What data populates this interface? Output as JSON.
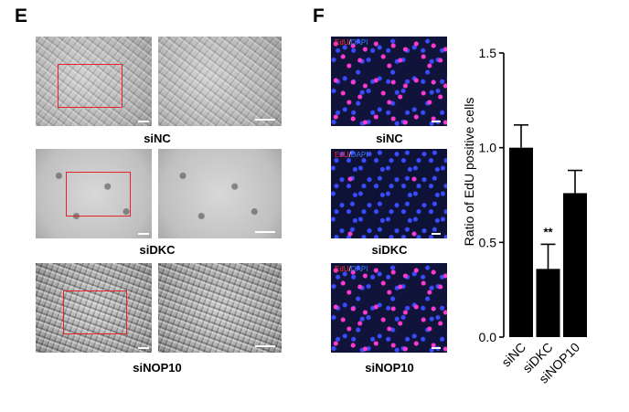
{
  "panel_e": {
    "letter": "E",
    "captions": [
      "siNC",
      "siDKC",
      "siNOP10"
    ]
  },
  "panel_f": {
    "letter": "F",
    "captions": [
      "siNC",
      "siDKC",
      "siNOP10"
    ],
    "stain_label": {
      "edu": "EdU",
      "separator": "/",
      "dapi": "DAPI"
    }
  },
  "chart_data": {
    "type": "bar",
    "categories": [
      "siNC",
      "siDKC",
      "siNOP10"
    ],
    "values": [
      1.0,
      0.36,
      0.76
    ],
    "errors": [
      0.12,
      0.13,
      0.12
    ],
    "significance": [
      "",
      "**",
      ""
    ],
    "ylabel": "Ratio of EdU positive cells",
    "xlabel": "",
    "ylim": [
      0.0,
      1.5
    ],
    "yticks": [
      "0.0",
      "0.5",
      "1.0",
      "1.5"
    ],
    "bar_color": "#000000"
  }
}
